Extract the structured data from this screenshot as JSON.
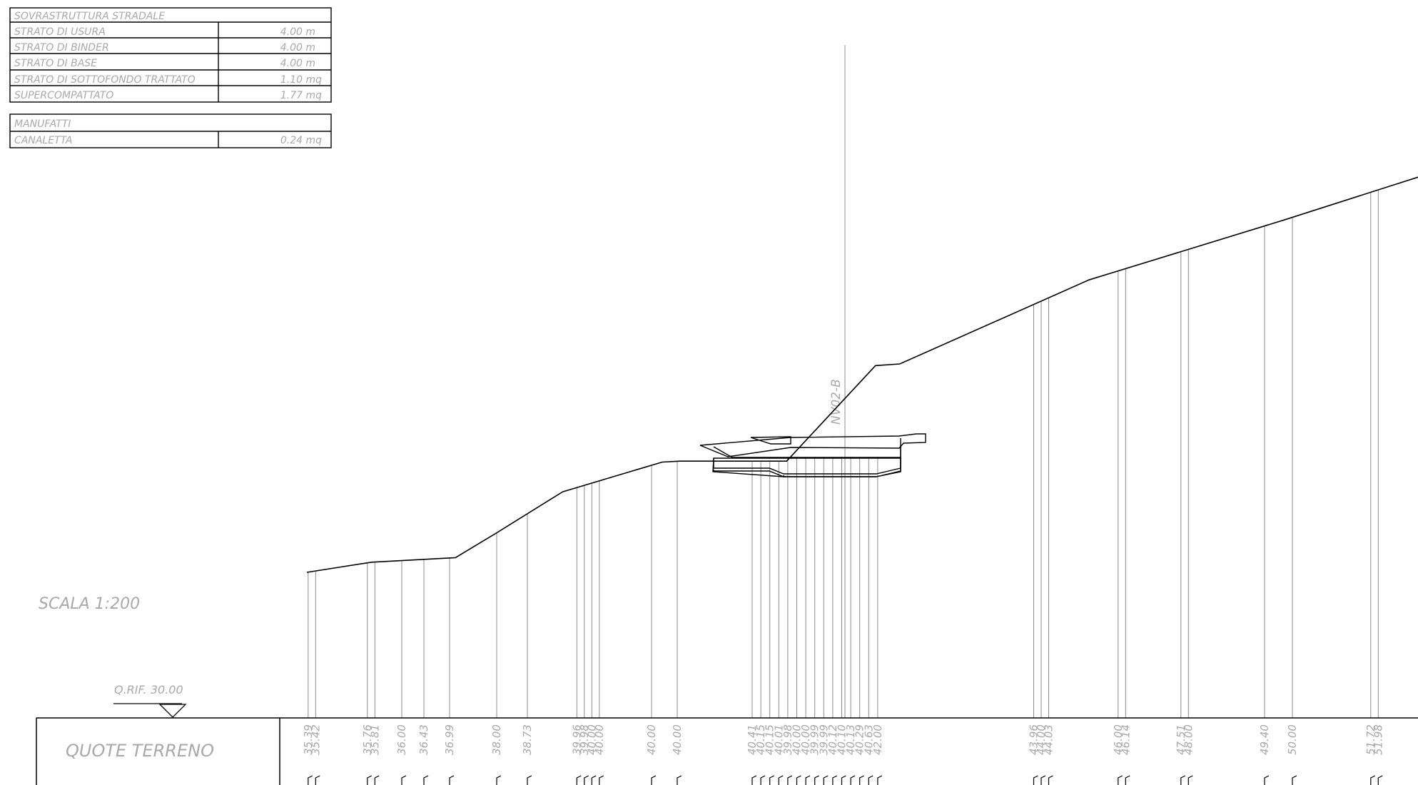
{
  "table_sovrastruttura": {
    "title": "SOVRASTRUTTURA STRADALE",
    "rows": [
      {
        "label": "STRATO DI USURA",
        "value": "4.00 m"
      },
      {
        "label": "STRATO DI BINDER",
        "value": "4.00 m"
      },
      {
        "label": "STRATO DI BASE",
        "value": "4.00 m"
      },
      {
        "label": "STRATO DI SOTTOFONDO TRATTATO",
        "value": "1.10 mq"
      },
      {
        "label": "SUPERCOMPATTATO",
        "value": "1.77 mq"
      }
    ]
  },
  "table_manufatti": {
    "title": "MANUFATTI",
    "rows": [
      {
        "label": "CANALETTA",
        "value": "0.24 mq"
      }
    ]
  },
  "scale_label": "SCALA 1:200",
  "reference_label": "Q.RIF. 30.00",
  "axis_label": "NV02-B",
  "quote_header": "QUOTE TERRENO",
  "ground_profile": {
    "x": [
      0,
      18.2,
      41.8,
      53.0,
      72.0,
      100.0,
      105.0,
      135.0,
      160.0,
      166.8,
      220.0,
      275.0,
      317.0
    ],
    "elevations": [
      35.39,
      35.81,
      36.0,
      36.99,
      38.73,
      39.96,
      40.0,
      40.0,
      43.96,
      44.03,
      47.51,
      50.0,
      51.98
    ]
  },
  "quote_groups": [
    [
      "35.39",
      "35.42"
    ],
    [
      "35.76",
      "35.81"
    ],
    [
      "36.00"
    ],
    [
      "36.43"
    ],
    [
      "36.99"
    ],
    [
      "38.00"
    ],
    [
      "38.73"
    ],
    [
      "39.96",
      "39.98",
      "40.00",
      "40.00"
    ],
    [
      "40.00"
    ],
    [
      "40.00"
    ],
    [
      "40.41"
    ],
    [
      "40.15",
      "40.15",
      "40.01",
      "39.98",
      "40.00",
      "40.00",
      "39.99",
      "39.99",
      "40.12",
      "40.10",
      "40.13",
      "40.29",
      "40.63",
      "42.00"
    ],
    [
      "43.96",
      "44.00",
      "44.03"
    ],
    [
      "46.00",
      "46.14"
    ],
    [
      "47.51",
      "48.00"
    ],
    [
      "49.40"
    ],
    [
      "50.00"
    ],
    [
      "51.72",
      "51.98"
    ]
  ]
}
